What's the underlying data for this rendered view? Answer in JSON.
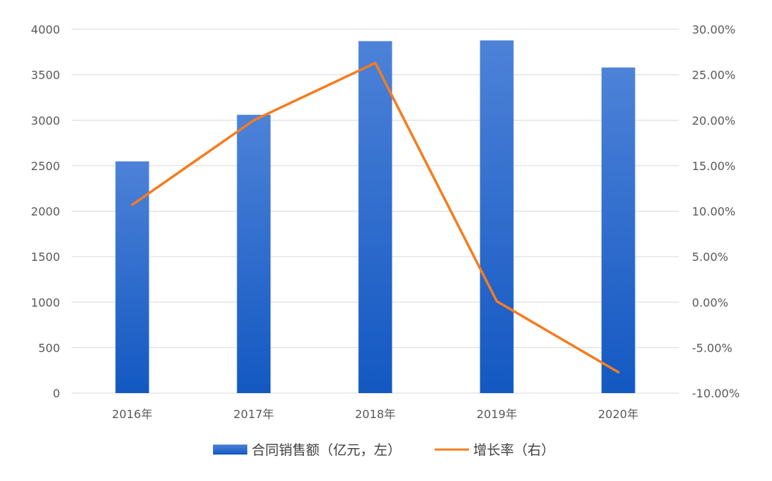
{
  "chart_data": {
    "type": "bar",
    "categories": [
      "2016年",
      "2017年",
      "2018年",
      "2019年",
      "2020年"
    ],
    "series": [
      {
        "name": "合同销售额（亿元，左）",
        "type": "bar",
        "axis": "left",
        "values": [
          2548,
          3060,
          3870,
          3878,
          3580
        ],
        "color": "#2469d3"
      },
      {
        "name": "增长率（右）",
        "type": "line",
        "axis": "right",
        "values": [
          10.7,
          20.0,
          26.3,
          0.1,
          -7.7
        ],
        "color": "#f57c1f"
      }
    ],
    "y_left": {
      "min": 0,
      "max": 4000,
      "step": 500,
      "tick_labels": [
        "0",
        "500",
        "1000",
        "1500",
        "2000",
        "2500",
        "3000",
        "3500",
        "4000"
      ]
    },
    "y_right": {
      "min": -10,
      "max": 30,
      "step": 5,
      "tick_labels": [
        "-10.00%",
        "-5.00%",
        "0.00%",
        "5.00%",
        "10.00%",
        "15.00%",
        "20.00%",
        "25.00%",
        "30.00%"
      ]
    },
    "grid": true,
    "legend_position": "bottom"
  },
  "legend": {
    "bar_label": "合同销售额（亿元，左）",
    "line_label": "增长率（右）"
  }
}
